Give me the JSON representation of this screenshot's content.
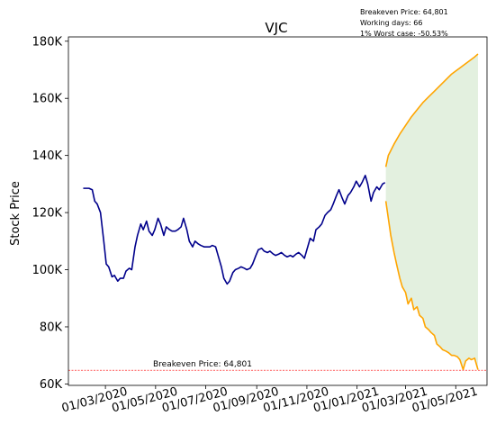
{
  "chart_data": {
    "type": "line",
    "title": "VJC",
    "ylabel": "Stock Price",
    "xlabel": "",
    "grid": false,
    "ylim": [
      59500,
      181500
    ],
    "xlim": [
      "2020-01-16",
      "2021-06-08"
    ],
    "info_lines": [
      "Breakeven Price: 64,801",
      "Working days: 66",
      "1% Worst case: -50.53%"
    ],
    "breakeven": {
      "value": 64801,
      "label": "Breakeven Price: 64,801",
      "color": "#ff0000"
    },
    "yticks": [
      {
        "value": 60000,
        "label": "60K"
      },
      {
        "value": 80000,
        "label": "80K"
      },
      {
        "value": 100000,
        "label": "100K"
      },
      {
        "value": 120000,
        "label": "120K"
      },
      {
        "value": 140000,
        "label": "140K"
      },
      {
        "value": 160000,
        "label": "160K"
      },
      {
        "value": 180000,
        "label": "180K"
      }
    ],
    "xticks": [
      {
        "value": "2020-03-01",
        "label": "01/03/2020"
      },
      {
        "value": "2020-05-01",
        "label": "01/05/2020"
      },
      {
        "value": "2020-07-01",
        "label": "01/07/2020"
      },
      {
        "value": "2020-09-01",
        "label": "01/09/2020"
      },
      {
        "value": "2020-11-01",
        "label": "01/11/2020"
      },
      {
        "value": "2021-01-01",
        "label": "01/01/2021"
      },
      {
        "value": "2021-03-01",
        "label": "01/03/2021"
      },
      {
        "value": "2021-05-01",
        "label": "01/05/2021"
      }
    ],
    "series": [
      {
        "color": "#00008b",
        "points": [
          [
            "2020-02-03",
            128500
          ],
          [
            "2020-02-10",
            128500
          ],
          [
            "2020-02-14",
            128000
          ],
          [
            "2020-02-17",
            124000
          ],
          [
            "2020-02-20",
            123000
          ],
          [
            "2020-02-24",
            120000
          ],
          [
            "2020-02-26",
            115000
          ],
          [
            "2020-02-28",
            110000
          ],
          [
            "2020-03-02",
            102000
          ],
          [
            "2020-03-05",
            101000
          ],
          [
            "2020-03-09",
            97500
          ],
          [
            "2020-03-12",
            98000
          ],
          [
            "2020-03-16",
            96000
          ],
          [
            "2020-03-19",
            97000
          ],
          [
            "2020-03-23",
            97000
          ],
          [
            "2020-03-26",
            99500
          ],
          [
            "2020-03-30",
            100500
          ],
          [
            "2020-04-02",
            100000
          ],
          [
            "2020-04-06",
            108000
          ],
          [
            "2020-04-09",
            112000
          ],
          [
            "2020-04-13",
            116000
          ],
          [
            "2020-04-16",
            114000
          ],
          [
            "2020-04-20",
            117000
          ],
          [
            "2020-04-23",
            113500
          ],
          [
            "2020-04-27",
            112000
          ],
          [
            "2020-04-30",
            114000
          ],
          [
            "2020-05-04",
            118000
          ],
          [
            "2020-05-07",
            116000
          ],
          [
            "2020-05-11",
            112000
          ],
          [
            "2020-05-14",
            115000
          ],
          [
            "2020-05-18",
            114000
          ],
          [
            "2020-05-21",
            113500
          ],
          [
            "2020-05-25",
            113500
          ],
          [
            "2020-05-28",
            114000
          ],
          [
            "2020-06-01",
            115000
          ],
          [
            "2020-06-04",
            118000
          ],
          [
            "2020-06-08",
            114000
          ],
          [
            "2020-06-11",
            110000
          ],
          [
            "2020-06-15",
            108000
          ],
          [
            "2020-06-18",
            110000
          ],
          [
            "2020-06-22",
            109000
          ],
          [
            "2020-06-25",
            108500
          ],
          [
            "2020-06-29",
            108000
          ],
          [
            "2020-07-02",
            108000
          ],
          [
            "2020-07-06",
            108000
          ],
          [
            "2020-07-09",
            108500
          ],
          [
            "2020-07-13",
            108000
          ],
          [
            "2020-07-16",
            105000
          ],
          [
            "2020-07-20",
            101000
          ],
          [
            "2020-07-23",
            97000
          ],
          [
            "2020-07-27",
            95000
          ],
          [
            "2020-07-30",
            96000
          ],
          [
            "2020-08-03",
            99000
          ],
          [
            "2020-08-06",
            100000
          ],
          [
            "2020-08-10",
            100500
          ],
          [
            "2020-08-13",
            101000
          ],
          [
            "2020-08-17",
            100500
          ],
          [
            "2020-08-20",
            100000
          ],
          [
            "2020-08-24",
            100500
          ],
          [
            "2020-08-27",
            102000
          ],
          [
            "2020-08-31",
            105000
          ],
          [
            "2020-09-03",
            107000
          ],
          [
            "2020-09-07",
            107500
          ],
          [
            "2020-09-10",
            106500
          ],
          [
            "2020-09-14",
            106000
          ],
          [
            "2020-09-17",
            106500
          ],
          [
            "2020-09-21",
            105500
          ],
          [
            "2020-09-24",
            105000
          ],
          [
            "2020-09-28",
            105500
          ],
          [
            "2020-10-01",
            106000
          ],
          [
            "2020-10-05",
            105000
          ],
          [
            "2020-10-08",
            104500
          ],
          [
            "2020-10-12",
            105000
          ],
          [
            "2020-10-15",
            104500
          ],
          [
            "2020-10-19",
            105500
          ],
          [
            "2020-10-22",
            106000
          ],
          [
            "2020-10-26",
            105000
          ],
          [
            "2020-10-29",
            104000
          ],
          [
            "2020-11-02",
            108000
          ],
          [
            "2020-11-05",
            111000
          ],
          [
            "2020-11-09",
            110000
          ],
          [
            "2020-11-12",
            114000
          ],
          [
            "2020-11-16",
            115000
          ],
          [
            "2020-11-19",
            116000
          ],
          [
            "2020-11-23",
            119000
          ],
          [
            "2020-11-26",
            120000
          ],
          [
            "2020-11-30",
            121000
          ],
          [
            "2020-12-03",
            123000
          ],
          [
            "2020-12-07",
            126000
          ],
          [
            "2020-12-10",
            128000
          ],
          [
            "2020-12-14",
            125000
          ],
          [
            "2020-12-17",
            123000
          ],
          [
            "2020-12-21",
            126000
          ],
          [
            "2020-12-24",
            127000
          ],
          [
            "2020-12-28",
            129000
          ],
          [
            "2020-12-31",
            131000
          ],
          [
            "2021-01-04",
            129000
          ],
          [
            "2021-01-07",
            130500
          ],
          [
            "2021-01-11",
            133000
          ],
          [
            "2021-01-14",
            130000
          ],
          [
            "2021-01-18",
            124000
          ],
          [
            "2021-01-21",
            127000
          ],
          [
            "2021-01-25",
            129000
          ],
          [
            "2021-01-28",
            128000
          ],
          [
            "2021-02-01",
            130000
          ],
          [
            "2021-02-04",
            130500
          ]
        ]
      },
      {
        "color": "#ffa500",
        "points": [
          [
            "2021-02-05",
            136000
          ],
          [
            "2021-02-08",
            140000
          ],
          [
            "2021-02-15",
            144000
          ],
          [
            "2021-02-22",
            147500
          ],
          [
            "2021-03-01",
            150500
          ],
          [
            "2021-03-08",
            153500
          ],
          [
            "2021-03-15",
            156000
          ],
          [
            "2021-03-22",
            158500
          ],
          [
            "2021-03-29",
            160500
          ],
          [
            "2021-04-05",
            162500
          ],
          [
            "2021-04-12",
            164500
          ],
          [
            "2021-04-19",
            166500
          ],
          [
            "2021-04-26",
            168500
          ],
          [
            "2021-05-03",
            170000
          ],
          [
            "2021-05-10",
            171500
          ],
          [
            "2021-05-17",
            173000
          ],
          [
            "2021-05-24",
            174500
          ],
          [
            "2021-05-28",
            175500
          ]
        ]
      },
      {
        "color": "#ffa500",
        "points": [
          [
            "2021-02-05",
            124000
          ],
          [
            "2021-02-08",
            118000
          ],
          [
            "2021-02-11",
            112000
          ],
          [
            "2021-02-15",
            106000
          ],
          [
            "2021-02-18",
            102000
          ],
          [
            "2021-02-22",
            97000
          ],
          [
            "2021-02-25",
            94000
          ],
          [
            "2021-03-01",
            92000
          ],
          [
            "2021-03-04",
            88000
          ],
          [
            "2021-03-08",
            90000
          ],
          [
            "2021-03-11",
            86000
          ],
          [
            "2021-03-15",
            87000
          ],
          [
            "2021-03-18",
            84000
          ],
          [
            "2021-03-22",
            83000
          ],
          [
            "2021-03-25",
            80000
          ],
          [
            "2021-03-29",
            79000
          ],
          [
            "2021-04-01",
            78000
          ],
          [
            "2021-04-05",
            77000
          ],
          [
            "2021-04-08",
            74000
          ],
          [
            "2021-04-12",
            73000
          ],
          [
            "2021-04-15",
            72000
          ],
          [
            "2021-04-19",
            71500
          ],
          [
            "2021-04-22",
            71000
          ],
          [
            "2021-04-26",
            70000
          ],
          [
            "2021-04-29",
            70000
          ],
          [
            "2021-05-03",
            69500
          ],
          [
            "2021-05-06",
            68500
          ],
          [
            "2021-05-10",
            65000
          ],
          [
            "2021-05-13",
            68000
          ],
          [
            "2021-05-17",
            69000
          ],
          [
            "2021-05-20",
            68500
          ],
          [
            "2021-05-24",
            69000
          ],
          [
            "2021-05-28",
            65000
          ]
        ]
      }
    ],
    "band": {
      "fill_color": "#e3f0df",
      "upper_series_index": 1,
      "lower_series_index": 2
    }
  }
}
